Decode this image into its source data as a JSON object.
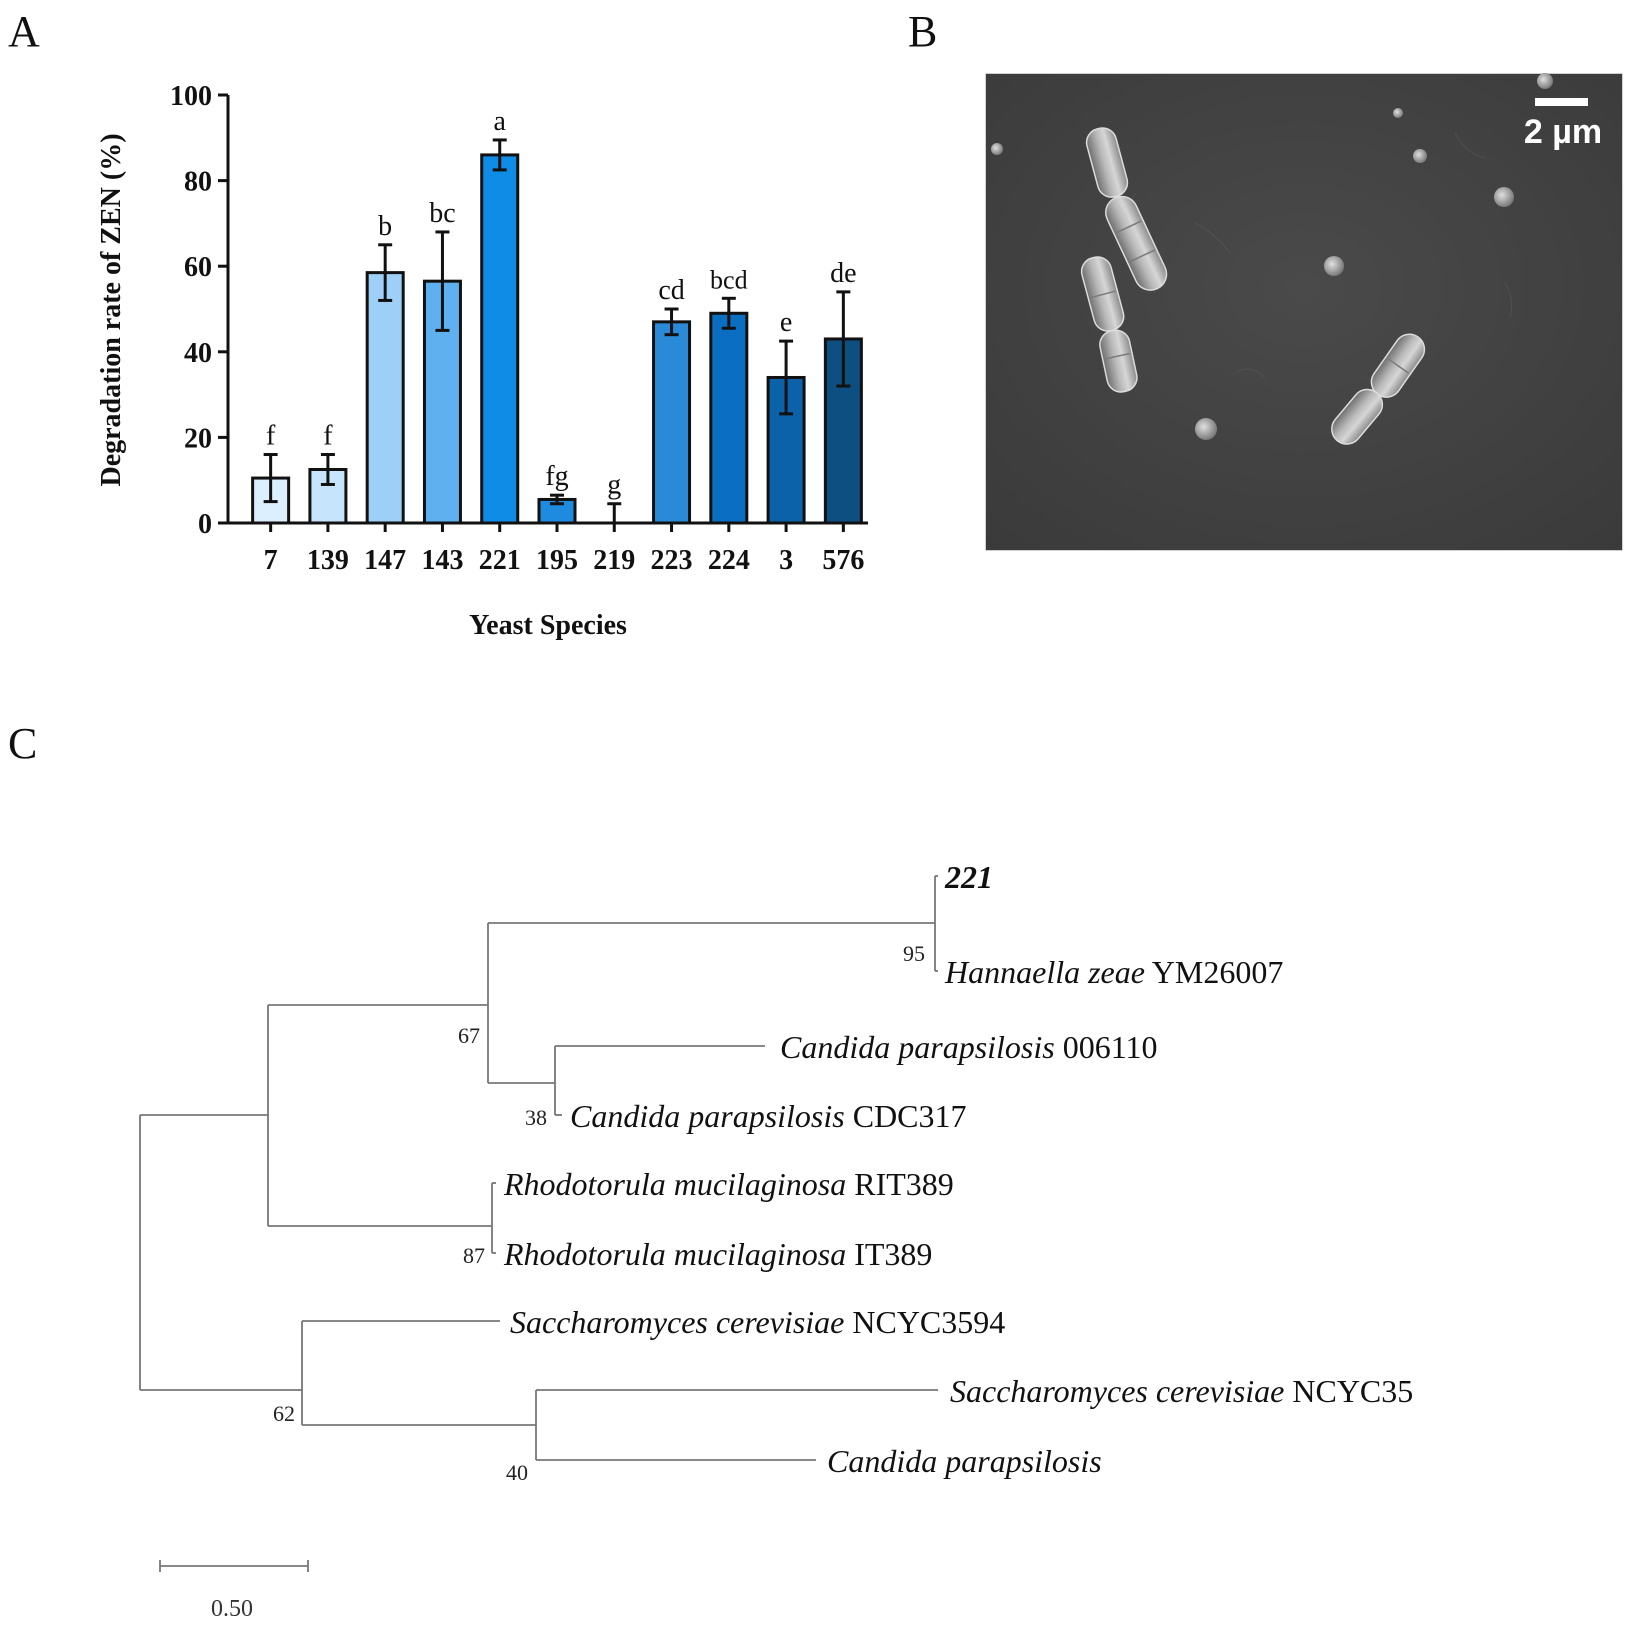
{
  "panels": {
    "a": "A",
    "b": "B",
    "c": "C"
  },
  "chart_data": {
    "type": "bar",
    "ylabel": "Degradation rate of ZEN (%)",
    "xlabel": "Yeast Species",
    "ylim": [
      0,
      100
    ],
    "yticks": [
      0,
      20,
      40,
      60,
      80,
      100
    ],
    "grid": false,
    "categories": [
      "7",
      "139",
      "147",
      "143",
      "221",
      "195",
      "219",
      "223",
      "224",
      "3",
      "576"
    ],
    "values": [
      10.5,
      12.5,
      58.5,
      56.5,
      86,
      5.5,
      0,
      47,
      49,
      34,
      43
    ],
    "errors": [
      5.5,
      3.5,
      6.5,
      11.5,
      3.5,
      1,
      4.5,
      3,
      3.5,
      8.5,
      11
    ],
    "significance_letters": [
      "f",
      "f",
      "b",
      "bc",
      "a",
      "fg",
      "g",
      "cd",
      "bcd",
      "e",
      "de"
    ],
    "colors": [
      "#dcefff",
      "#c6e4fb",
      "#9ed0f7",
      "#5eb0ee",
      "#0f8de6",
      "#1f8be0",
      "#1f8be0",
      "#2a8ad8",
      "#0a6fc2",
      "#0b62a8",
      "#0d4f80"
    ]
  },
  "sem": {
    "scale_bar_label": "2 µm"
  },
  "tree": {
    "leaves": [
      {
        "id": "221",
        "italic": "",
        "plain": "221",
        "bold": true
      },
      {
        "id": "hz",
        "italic": "Hannaella zeae",
        "plain": " YM26007",
        "bold": false
      },
      {
        "id": "cp1",
        "italic": "Candida parapsilosis",
        "plain": " 006110",
        "bold": false
      },
      {
        "id": "cp2",
        "italic": "Candida parapsilosis",
        "plain": " CDC317",
        "bold": false
      },
      {
        "id": "rm1",
        "italic": "Rhodotorula mucilaginosa",
        "plain": " RIT389",
        "bold": false
      },
      {
        "id": "rm2",
        "italic": "Rhodotorula mucilaginosa",
        "plain": " IT389",
        "bold": false
      },
      {
        "id": "sc1",
        "italic": "Saccharomyces cerevisiae",
        "plain": " NCYC3594",
        "bold": false
      },
      {
        "id": "sc2",
        "italic": "Saccharomyces cerevisiae",
        "plain": " NCYC35",
        "bold": false
      },
      {
        "id": "cp3",
        "italic": "Candida parapsilosis",
        "plain": "",
        "bold": false
      }
    ],
    "bootstrap": [
      "95",
      "67",
      "38",
      "87",
      "62",
      "40"
    ],
    "scale_label": "0.50"
  }
}
